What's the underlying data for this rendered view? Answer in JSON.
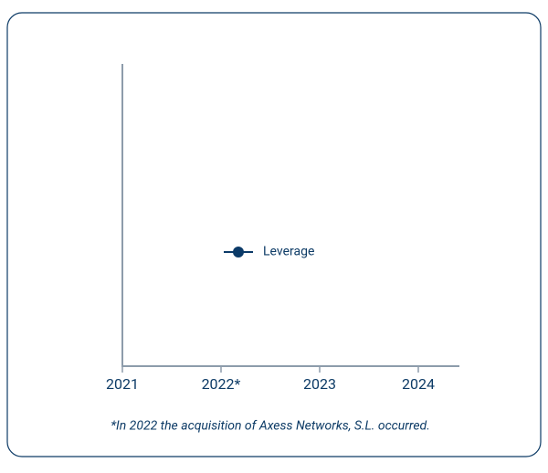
{
  "chart_data": {
    "type": "line",
    "categories": [
      "2021",
      "2022*",
      "2023",
      "2024"
    ],
    "series": [
      {
        "name": "Leverage",
        "color": "#0b3a68",
        "values": [
          null,
          null,
          null,
          null
        ]
      }
    ],
    "annotation": "*In 2022 the acquisition of Axess Networks, S.L. occurred."
  }
}
